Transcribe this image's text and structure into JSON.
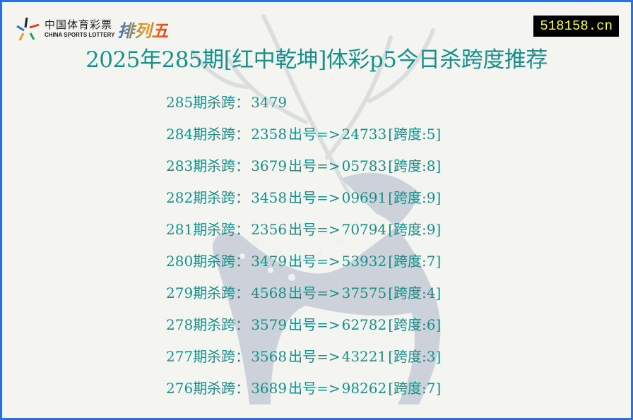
{
  "header": {
    "logo": {
      "cn": "中国体育彩票",
      "en": "CHINA SPORTS LOTTERY",
      "game": "排列五"
    },
    "site": "518158.cn",
    "title": "2025年285期[红中乾坤]体彩p5今日杀跨度推荐"
  },
  "colors": {
    "border": "#2f6fd6",
    "text": "#15908a",
    "site_bg": "#000000",
    "site_text": "#ffff33"
  },
  "current": {
    "label": "285期杀跨：",
    "value": "3479"
  },
  "history": [
    {
      "label": "284期杀跨：",
      "kill": "2358",
      "draw_label": "出号=>",
      "draw": "24733",
      "span": "[跨度:5]"
    },
    {
      "label": "283期杀跨：",
      "kill": "3679",
      "draw_label": "出号=>",
      "draw": "05783",
      "span": "[跨度:8]"
    },
    {
      "label": "282期杀跨：",
      "kill": "3458",
      "draw_label": "出号=>",
      "draw": "09691",
      "span": "[跨度:9]"
    },
    {
      "label": "281期杀跨：",
      "kill": "2356",
      "draw_label": "出号=>",
      "draw": "70794",
      "span": "[跨度:9]"
    },
    {
      "label": "280期杀跨：",
      "kill": "3479",
      "draw_label": "出号=>",
      "draw": "53932",
      "span": "[跨度:7]"
    },
    {
      "label": "279期杀跨：",
      "kill": "4568",
      "draw_label": "出号=>",
      "draw": "37575",
      "span": "[跨度:4]"
    },
    {
      "label": "278期杀跨：",
      "kill": "3579",
      "draw_label": "出号=>",
      "draw": "62782",
      "span": "[跨度:6]"
    },
    {
      "label": "277期杀跨：",
      "kill": "3568",
      "draw_label": "出号=>",
      "draw": "43221",
      "span": "[跨度:3]"
    },
    {
      "label": "276期杀跨：",
      "kill": "3689",
      "draw_label": "出号=>",
      "draw": "98262",
      "span": "[跨度:7]"
    }
  ]
}
